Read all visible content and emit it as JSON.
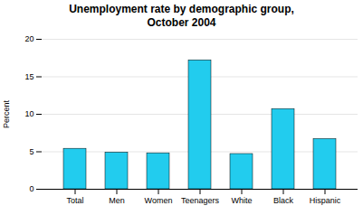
{
  "chart_data": {
    "type": "bar",
    "title": "Unemployment rate by demographic group,\nOctober 2004",
    "categories": [
      "Total",
      "Men",
      "Women",
      "Teenagers",
      "White",
      "Black",
      "Hispanic"
    ],
    "values": [
      5.4,
      4.9,
      4.8,
      17.2,
      4.7,
      10.7,
      6.7
    ],
    "color": "#22CCEE",
    "ylabel": "Percent",
    "ylim": [
      0,
      20
    ],
    "yticks": [
      0,
      5,
      10,
      15,
      20
    ],
    "grid": true
  }
}
